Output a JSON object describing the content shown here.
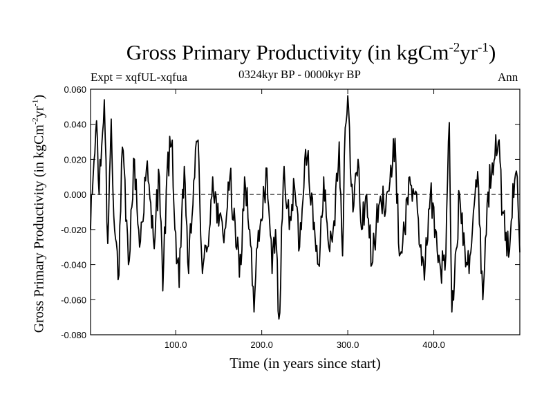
{
  "chart_data": {
    "type": "line",
    "title": "Gross Primary Productivity (in kgCm",
    "title_exp1": "-2",
    "title_mid": "yr",
    "title_exp2": "-1",
    "title_end": ")",
    "subtitle_left": "Expt = xqfUL-xqfua",
    "subtitle_center": "0324kyr BP - 0000kyr BP",
    "subtitle_right": "Ann",
    "xlabel": "Time (in years since start)",
    "ylabel": "Gross Primary Productivity (in kgCm",
    "ylabel_exp1": "-2",
    "ylabel_mid": "yr",
    "ylabel_exp2": "-1",
    "ylabel_end": ")",
    "xlim": [
      1,
      500
    ],
    "ylim": [
      -0.08,
      0.06
    ],
    "xticks": [
      100,
      200,
      300,
      400
    ],
    "xtick_labels": [
      "100.0",
      "200.0",
      "300.0",
      "400.0"
    ],
    "yticks": [
      -0.08,
      -0.06,
      -0.04,
      -0.02,
      0.0,
      0.02,
      0.04,
      0.06
    ],
    "ytick_labels": [
      "-0.080",
      "-0.060",
      "-0.040",
      "-0.020",
      "0.000",
      "0.020",
      "0.040",
      "0.060"
    ],
    "reference_line": 0.0,
    "line_color": "#000000",
    "keypoints": [
      [
        1,
        -0.02
      ],
      [
        4,
        0.01
      ],
      [
        8,
        0.042
      ],
      [
        11,
        0.0
      ],
      [
        14,
        0.028
      ],
      [
        17,
        0.054
      ],
      [
        21,
        -0.028
      ],
      [
        25,
        0.043
      ],
      [
        29,
        -0.02
      ],
      [
        34,
        -0.046
      ],
      [
        38,
        0.027
      ],
      [
        45,
        -0.04
      ],
      [
        52,
        0.02
      ],
      [
        58,
        -0.03
      ],
      [
        66,
        0.015
      ],
      [
        74,
        -0.025
      ],
      [
        81,
        0.01
      ],
      [
        85,
        -0.055
      ],
      [
        90,
        0.014
      ],
      [
        96,
        0.031
      ],
      [
        99,
        -0.02
      ],
      [
        104,
        -0.053
      ],
      [
        110,
        0.016
      ],
      [
        115,
        -0.045
      ],
      [
        121,
        0.008
      ],
      [
        126,
        0.031
      ],
      [
        131,
        -0.045
      ],
      [
        137,
        -0.03
      ],
      [
        143,
        0.01
      ],
      [
        150,
        -0.018
      ],
      [
        157,
        -0.02
      ],
      [
        163,
        0.01
      ],
      [
        170,
        -0.03
      ],
      [
        176,
        -0.04
      ],
      [
        180,
        0.01
      ],
      [
        186,
        -0.02
      ],
      [
        191,
        -0.067
      ],
      [
        195,
        -0.03
      ],
      [
        200,
        -0.015
      ],
      [
        206,
        0.015
      ],
      [
        212,
        -0.045
      ],
      [
        216,
        -0.02
      ],
      [
        220,
        -0.071
      ],
      [
        226,
        0.016
      ],
      [
        232,
        -0.02
      ],
      [
        238,
        0.005
      ],
      [
        244,
        -0.03
      ],
      [
        250,
        0.02
      ],
      [
        254,
        0.025
      ],
      [
        260,
        -0.02
      ],
      [
        266,
        -0.04
      ],
      [
        272,
        0.01
      ],
      [
        278,
        -0.03
      ],
      [
        284,
        -0.015
      ],
      [
        290,
        0.03
      ],
      [
        294,
        -0.035
      ],
      [
        297,
        0.038
      ],
      [
        301,
        0.049
      ],
      [
        306,
        -0.01
      ],
      [
        312,
        0.02
      ],
      [
        316,
        -0.02
      ],
      [
        322,
        0.0
      ],
      [
        328,
        -0.04
      ],
      [
        333,
        -0.018
      ],
      [
        339,
        -0.005
      ],
      [
        345,
        0.0
      ],
      [
        351,
        0.01
      ],
      [
        355,
        0.032
      ],
      [
        360,
        -0.035
      ],
      [
        366,
        -0.02
      ],
      [
        372,
        0.01
      ],
      [
        378,
        0.0
      ],
      [
        384,
        -0.03
      ],
      [
        390,
        -0.04
      ],
      [
        396,
        0.0
      ],
      [
        402,
        -0.02
      ],
      [
        408,
        -0.043
      ],
      [
        414,
        -0.035
      ],
      [
        418,
        0.041
      ],
      [
        421,
        -0.067
      ],
      [
        424,
        -0.05
      ],
      [
        430,
        0.0
      ],
      [
        436,
        -0.03
      ],
      [
        442,
        -0.035
      ],
      [
        448,
        0.0
      ],
      [
        452,
        0.005
      ],
      [
        457,
        -0.06
      ],
      [
        462,
        -0.005
      ],
      [
        468,
        0.018
      ],
      [
        472,
        0.034
      ],
      [
        475,
        0.03
      ],
      [
        480,
        -0.01
      ],
      [
        485,
        -0.035
      ],
      [
        490,
        -0.015
      ],
      [
        494,
        0.008
      ],
      [
        497,
        0.01
      ],
      [
        500,
        -0.033
      ]
    ]
  }
}
